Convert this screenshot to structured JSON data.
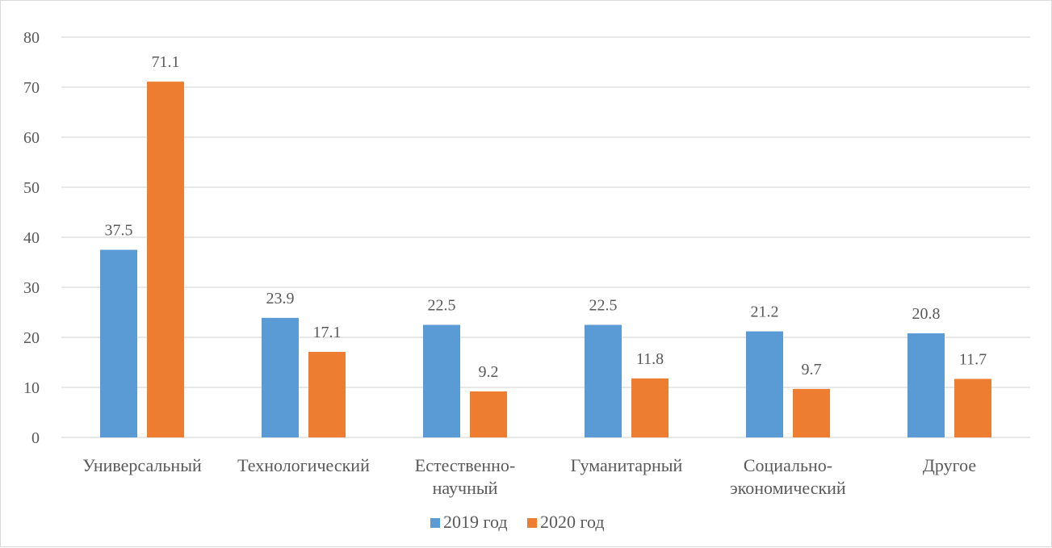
{
  "chart_data": {
    "type": "bar",
    "categories": [
      [
        "Универсальный"
      ],
      [
        "Технологический"
      ],
      [
        "Естественно-",
        "научный"
      ],
      [
        "Гуманитарный"
      ],
      [
        "Социально-",
        "экономический"
      ],
      [
        "Другое"
      ]
    ],
    "series": [
      {
        "name": "2019 год",
        "color": "#5b9bd5",
        "values": [
          37.5,
          23.9,
          22.5,
          22.5,
          21.2,
          20.8
        ]
      },
      {
        "name": "2020 год",
        "color": "#ed7d31",
        "values": [
          71.1,
          17.1,
          9.2,
          11.8,
          9.7,
          11.7
        ]
      }
    ],
    "ylim": [
      0,
      80
    ],
    "yticks": [
      0,
      10,
      20,
      30,
      40,
      50,
      60,
      70,
      80
    ],
    "grid": true,
    "legend": "bottom",
    "gridline_color": "#d9d9d9"
  }
}
